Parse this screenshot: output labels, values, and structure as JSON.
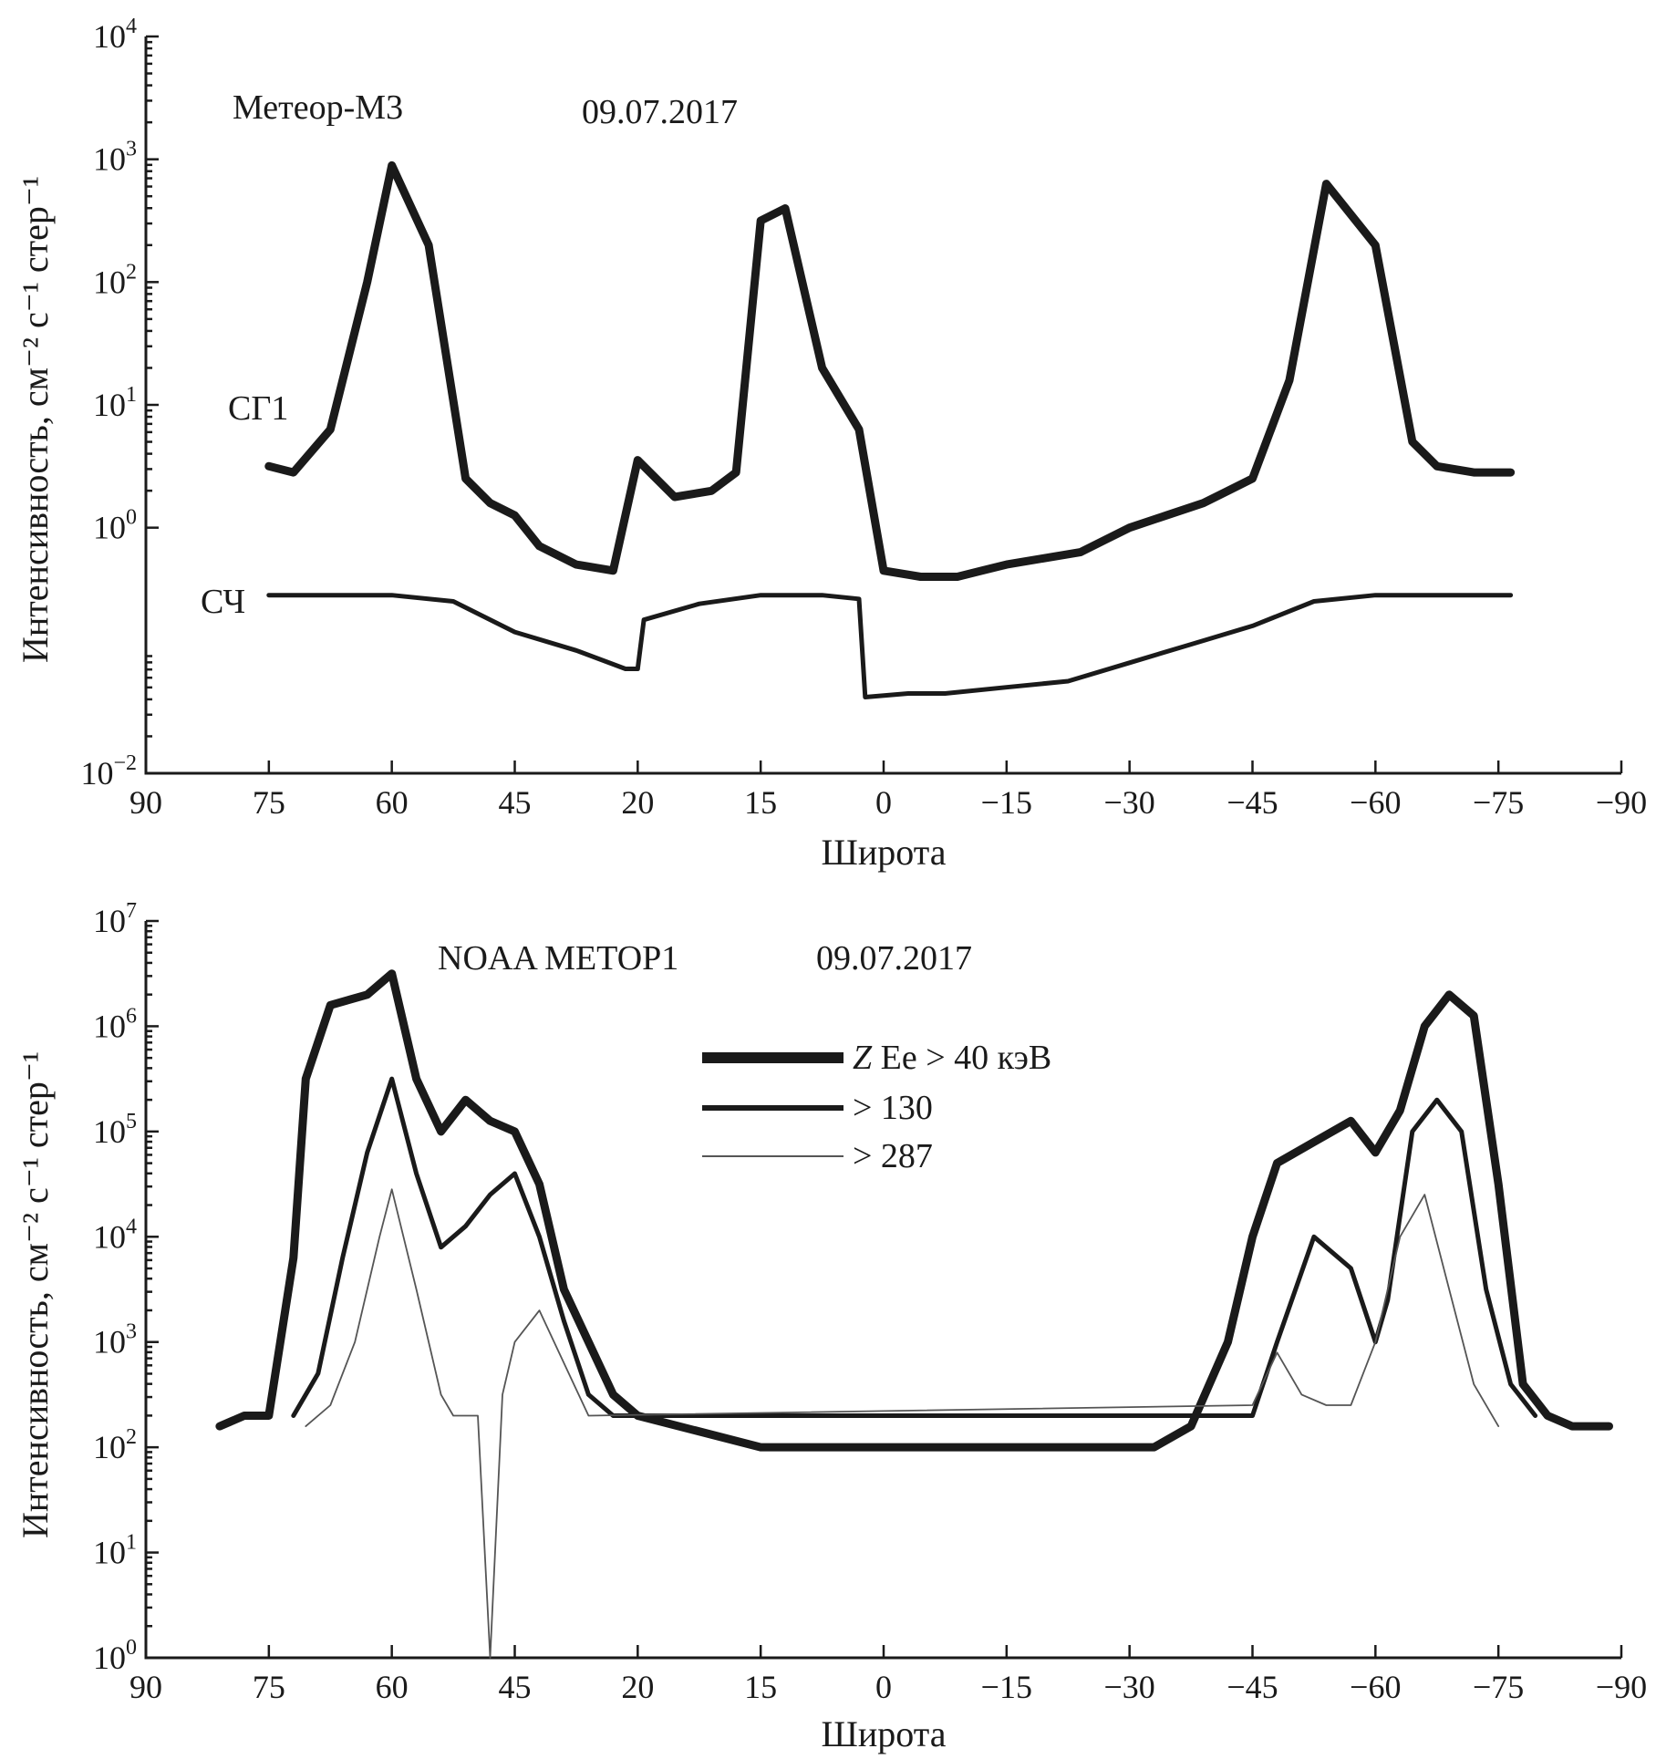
{
  "chart_data": [
    {
      "type": "line",
      "title": "Метеор-М3",
      "date": "09.07.2017",
      "xlabel": "Широта",
      "ylabel": "Интенсивность, см⁻² с⁻¹ стер⁻¹",
      "yscale": "log",
      "ylim_exp": [
        -2,
        4
      ],
      "y_tick_exponents": [
        "−2",
        "0",
        "1",
        "2",
        "3",
        "4"
      ],
      "x_tick_labels": [
        "90",
        "75",
        "60",
        "45",
        "20",
        "15",
        "0",
        "−15",
        "−30",
        "−45",
        "−60",
        "−75",
        "−90"
      ],
      "series": [
        {
          "name": "СГ1",
          "x_index": [
            1,
            1.2,
            1.5,
            1.8,
            2.0,
            2.3,
            2.6,
            2.8,
            3.0,
            3.2,
            3.5,
            3.8,
            4.0,
            4.3,
            4.6,
            4.8,
            5.0,
            5.2,
            5.5,
            5.8,
            6.0,
            6.3,
            6.6,
            6.8,
            7.0,
            7.3,
            7.6,
            7.8,
            8.0,
            8.3,
            8.6,
            8.8,
            9.0,
            9.3,
            9.6,
            10.0,
            10.3,
            10.5,
            10.8,
            11.1
          ],
          "log10_values": [
            0.5,
            0.45,
            0.8,
            2.0,
            2.95,
            2.3,
            0.4,
            0.2,
            0.1,
            -0.15,
            -0.3,
            -0.35,
            0.55,
            0.25,
            0.3,
            0.45,
            2.5,
            2.6,
            1.3,
            0.8,
            -0.35,
            -0.4,
            -0.4,
            -0.35,
            -0.3,
            -0.25,
            -0.2,
            -0.1,
            0.0,
            0.1,
            0.2,
            0.3,
            0.4,
            1.2,
            2.8,
            2.3,
            0.7,
            0.5,
            0.45,
            0.45
          ],
          "style": "thick"
        },
        {
          "name": "СЧ",
          "x_index": [
            1,
            1.5,
            2.0,
            2.5,
            3.0,
            3.5,
            3.9,
            4.0,
            4.05,
            4.5,
            5.0,
            5.5,
            5.8,
            5.85,
            6.2,
            6.5,
            7.0,
            7.5,
            8.0,
            8.5,
            9.0,
            9.5,
            10.0,
            10.5,
            11.1
          ],
          "log10_values": [
            -0.55,
            -0.55,
            -0.55,
            -0.6,
            -0.85,
            -1.0,
            -1.15,
            -1.15,
            -0.75,
            -0.62,
            -0.55,
            -0.55,
            -0.58,
            -1.38,
            -1.35,
            -1.35,
            -1.3,
            -1.25,
            -1.1,
            -0.95,
            -0.8,
            -0.6,
            -0.55,
            -0.55,
            -0.55
          ],
          "style": "medium"
        }
      ]
    },
    {
      "type": "line",
      "title": "NOAA METOP1",
      "date": "09.07.2017",
      "xlabel": "Широта",
      "ylabel": "Интенсивность, см⁻² с⁻¹ стер⁻¹",
      "yscale": "log",
      "ylim_exp": [
        0,
        7
      ],
      "y_tick_exponents": [
        "0",
        "1",
        "2",
        "3",
        "4",
        "5",
        "6",
        "7"
      ],
      "x_tick_labels": [
        "90",
        "75",
        "60",
        "45",
        "20",
        "15",
        "0",
        "−15",
        "−30",
        "−45",
        "−60",
        "−75",
        "−90"
      ],
      "legend": {
        "position": "top-center",
        "entries": [
          {
            "label_prefix": "Z",
            "label": " Ee > 40 кэВ"
          },
          {
            "label": "> 130"
          },
          {
            "label": "> 287"
          }
        ]
      },
      "series": [
        {
          "name": "Ee > 40 кэВ",
          "x_index": [
            0.6,
            0.8,
            1.0,
            1.2,
            1.3,
            1.5,
            1.8,
            2.0,
            2.2,
            2.4,
            2.6,
            2.8,
            3.0,
            3.2,
            3.4,
            3.6,
            3.8,
            4.0,
            5.0,
            6.0,
            7.0,
            8.0,
            8.2,
            8.5,
            8.8,
            9.0,
            9.2,
            9.5,
            9.8,
            10.0,
            10.2,
            10.4,
            10.6,
            10.8,
            11.0,
            11.2,
            11.4,
            11.6,
            11.9
          ],
          "log10_values": [
            2.2,
            2.3,
            2.3,
            3.8,
            5.5,
            6.2,
            6.3,
            6.5,
            5.5,
            5.0,
            5.3,
            5.1,
            5.0,
            4.5,
            3.5,
            3.0,
            2.5,
            2.3,
            2.0,
            2.0,
            2.0,
            2.0,
            2.0,
            2.2,
            3.0,
            4.0,
            4.7,
            4.9,
            5.1,
            4.8,
            5.2,
            6.0,
            6.3,
            6.1,
            4.5,
            2.6,
            2.3,
            2.2,
            2.2
          ],
          "style": "thick"
        },
        {
          "name": "> 130",
          "x_index": [
            1.2,
            1.4,
            1.6,
            1.8,
            2.0,
            2.2,
            2.4,
            2.6,
            2.8,
            3.0,
            3.2,
            3.4,
            3.6,
            3.8,
            9.0,
            9.2,
            9.5,
            9.8,
            10.0,
            10.1,
            10.3,
            10.5,
            10.7,
            10.9,
            11.1,
            11.3
          ],
          "log10_values": [
            2.3,
            2.7,
            3.8,
            4.8,
            5.5,
            4.6,
            3.9,
            4.1,
            4.4,
            4.6,
            4.0,
            3.2,
            2.5,
            2.3,
            2.3,
            3.0,
            4.0,
            3.7,
            3.0,
            3.4,
            5.0,
            5.3,
            5.0,
            3.5,
            2.6,
            2.3
          ],
          "style": "medium"
        },
        {
          "name": "> 287",
          "x_index": [
            1.3,
            1.5,
            1.7,
            1.9,
            2.0,
            2.2,
            2.4,
            2.5,
            2.7,
            2.8,
            2.9,
            3.0,
            3.2,
            3.4,
            3.6,
            9.0,
            9.2,
            9.4,
            9.6,
            9.8,
            10.0,
            10.2,
            10.4,
            10.6,
            10.8,
            11.0
          ],
          "log10_values": [
            2.2,
            2.4,
            3.0,
            4.0,
            4.45,
            3.5,
            2.5,
            2.3,
            2.3,
            0.0,
            2.5,
            3.0,
            3.3,
            2.8,
            2.3,
            2.4,
            2.9,
            2.5,
            2.4,
            2.4,
            3.0,
            4.0,
            4.4,
            3.5,
            2.6,
            2.2
          ],
          "style": "thin"
        }
      ]
    }
  ],
  "labels": {
    "top_sg1": "СГ1",
    "top_sch": "СЧ",
    "tick_base": "10"
  }
}
